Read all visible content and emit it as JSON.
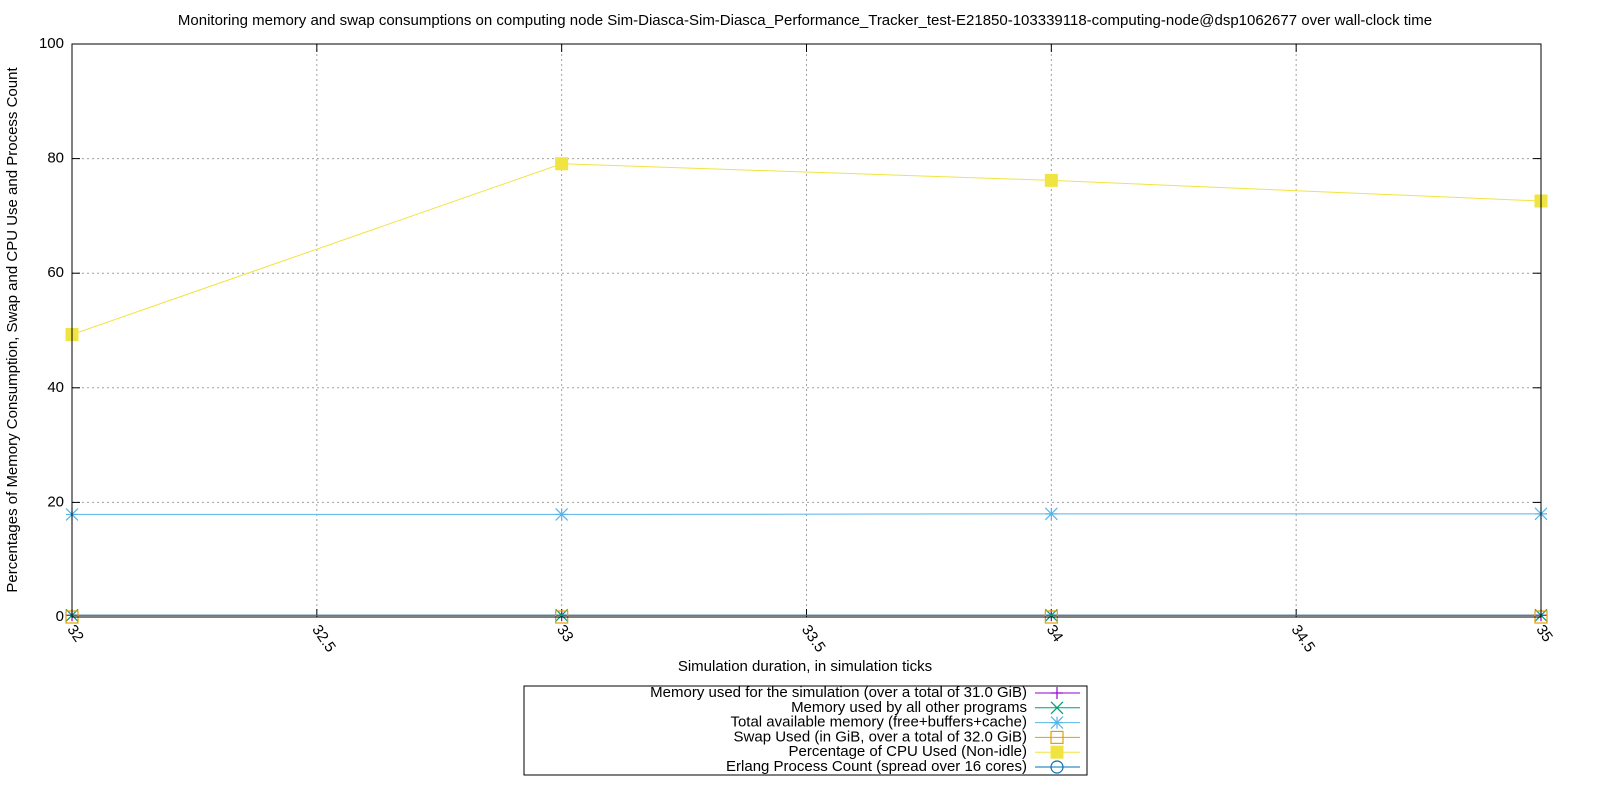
{
  "chart_data": {
    "type": "line",
    "title": "Monitoring memory and swap consumptions on computing node Sim-Diasca-Sim-Diasca_Performance_Tracker_test-E21850-103339118-computing-node@dsp1062677 over wall-clock time",
    "xlabel": "Simulation duration, in simulation ticks",
    "ylabel": "Percentages of Memory Consumption, Swap and CPU Use and Process Count",
    "x": [
      32,
      33,
      34,
      35
    ],
    "xlim": [
      32,
      35
    ],
    "xticks": [
      32,
      32.5,
      33,
      33.5,
      34,
      34.5,
      35
    ],
    "ylim": [
      0,
      100
    ],
    "yticks": [
      0,
      20,
      40,
      60,
      80,
      100
    ],
    "grid": true,
    "legend": "bottom",
    "series": [
      {
        "name": "Memory used for the simulation (over a total of 31.0 GiB)",
        "color": "#9400d3",
        "marker": "plus",
        "values": [
          0.3,
          0.3,
          0.3,
          0.3
        ]
      },
      {
        "name": "Memory used by all other programs",
        "color": "#009e73",
        "marker": "cross",
        "values": [
          0.3,
          0.3,
          0.3,
          0.3
        ]
      },
      {
        "name": "Total available memory (free+buffers+cache)",
        "color": "#56b4e9",
        "marker": "star",
        "values": [
          17.9,
          17.9,
          18.0,
          18.0
        ]
      },
      {
        "name": "Swap Used (in GiB, over a total of 32.0 GiB)",
        "color": "#e69f00",
        "marker": "square-open",
        "values": [
          0,
          0,
          0,
          0
        ]
      },
      {
        "name": "Percentage of CPU Used (Non-idle)",
        "color": "#f0e442",
        "marker": "square-filled",
        "values": [
          49.3,
          79.1,
          76.2,
          72.6
        ]
      },
      {
        "name": "Erlang Process Count (spread over 16 cores)",
        "color": "#0072b2",
        "marker": "circle-open",
        "values": [
          null,
          null,
          null,
          null
        ]
      }
    ]
  }
}
